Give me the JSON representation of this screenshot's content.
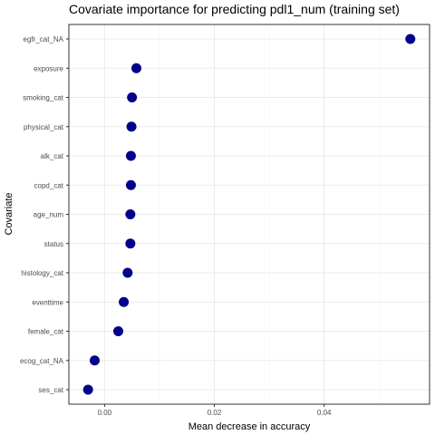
{
  "chart_data": {
    "type": "scatter",
    "title": "Covariate importance for predicting pdl1_num (training set)",
    "xlabel": "Mean decrease in accuracy",
    "ylabel": "Covariate",
    "xlim": [
      -0.0065,
      0.0592
    ],
    "xticks": [
      0.0,
      0.02,
      0.04
    ],
    "xtick_labels": [
      "0.00",
      "0.02",
      "0.04"
    ],
    "grid": true,
    "point_color": "#00008B",
    "categories": [
      "egfr_cat_NA",
      "exposure",
      "smoking_cat",
      "physical_cat",
      "alk_cat",
      "copd_cat",
      "age_num",
      "status",
      "histology_cat",
      "eventtime",
      "female_cat",
      "ecog_cat_NA",
      "ses_cat"
    ],
    "values": [
      0.0557,
      0.0058,
      0.005,
      0.0049,
      0.0048,
      0.0048,
      0.0047,
      0.0047,
      0.0042,
      0.0035,
      0.0025,
      -0.0018,
      -0.003
    ]
  }
}
